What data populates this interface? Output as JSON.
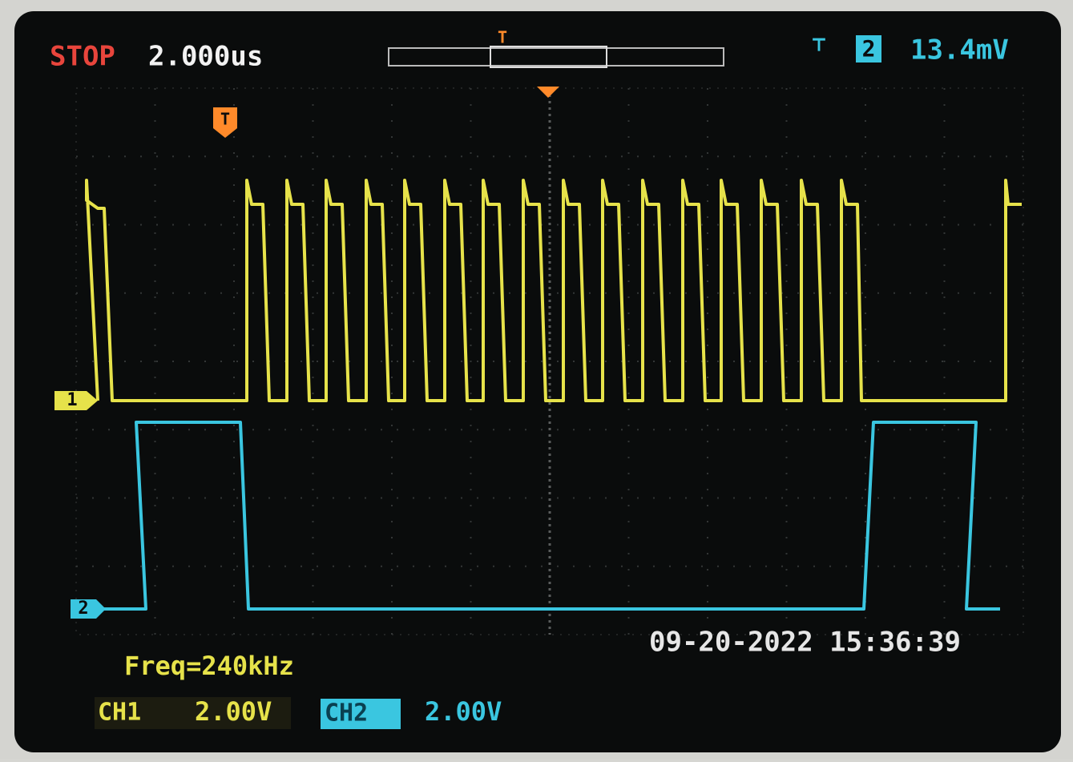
{
  "status": {
    "run_state": "STOP",
    "timebase": "2.000us",
    "trigger_marker": "T",
    "trigger_channel": "2",
    "trigger_level": "13.4mV"
  },
  "markers": {
    "trigger": "T",
    "ch1": "1",
    "ch2": "2"
  },
  "measurement": "Freq=240kHz",
  "timestamp": "09-20-2022 15:36:39",
  "channels": [
    {
      "label": "CH1",
      "scale": "2.00V"
    },
    {
      "label": "CH2",
      "scale": "2.00V"
    }
  ]
}
